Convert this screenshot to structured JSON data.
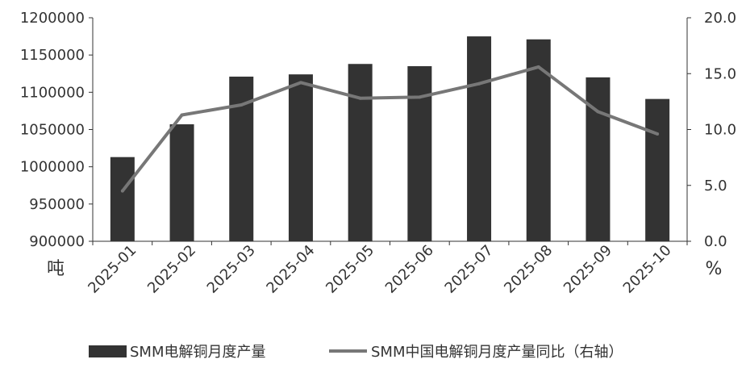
{
  "chart_data": {
    "type": "bar",
    "categories": [
      "2025-01",
      "2025-02",
      "2025-03",
      "2025-04",
      "2025-05",
      "2025-06",
      "2025-07",
      "2025-08",
      "2025-09",
      "2025-10"
    ],
    "series": [
      {
        "name": "SMM电解铜月度产量",
        "type": "bar",
        "axis": "left",
        "color": "#333333",
        "values": [
          1013000,
          1057000,
          1121000,
          1124000,
          1138000,
          1135000,
          1175000,
          1171000,
          1120000,
          1091000
        ]
      },
      {
        "name": "SMM中国电解铜月度产量同比（右轴）",
        "type": "line",
        "axis": "right",
        "color": "#777777",
        "values": [
          4.5,
          11.3,
          12.2,
          14.2,
          12.8,
          12.9,
          14.1,
          15.6,
          11.6,
          9.6
        ]
      }
    ],
    "y_left": {
      "label": "吨",
      "range": [
        900000,
        1200000
      ],
      "ticks": [
        "900000",
        "950000",
        "1000000",
        "1050000",
        "1100000",
        "1150000",
        "1200000"
      ]
    },
    "y_right": {
      "label": "%",
      "range": [
        0,
        20
      ],
      "ticks": [
        "0.0",
        "5.0",
        "10.0",
        "15.0",
        "20.0"
      ]
    },
    "grid": false,
    "legend_position": "bottom"
  }
}
